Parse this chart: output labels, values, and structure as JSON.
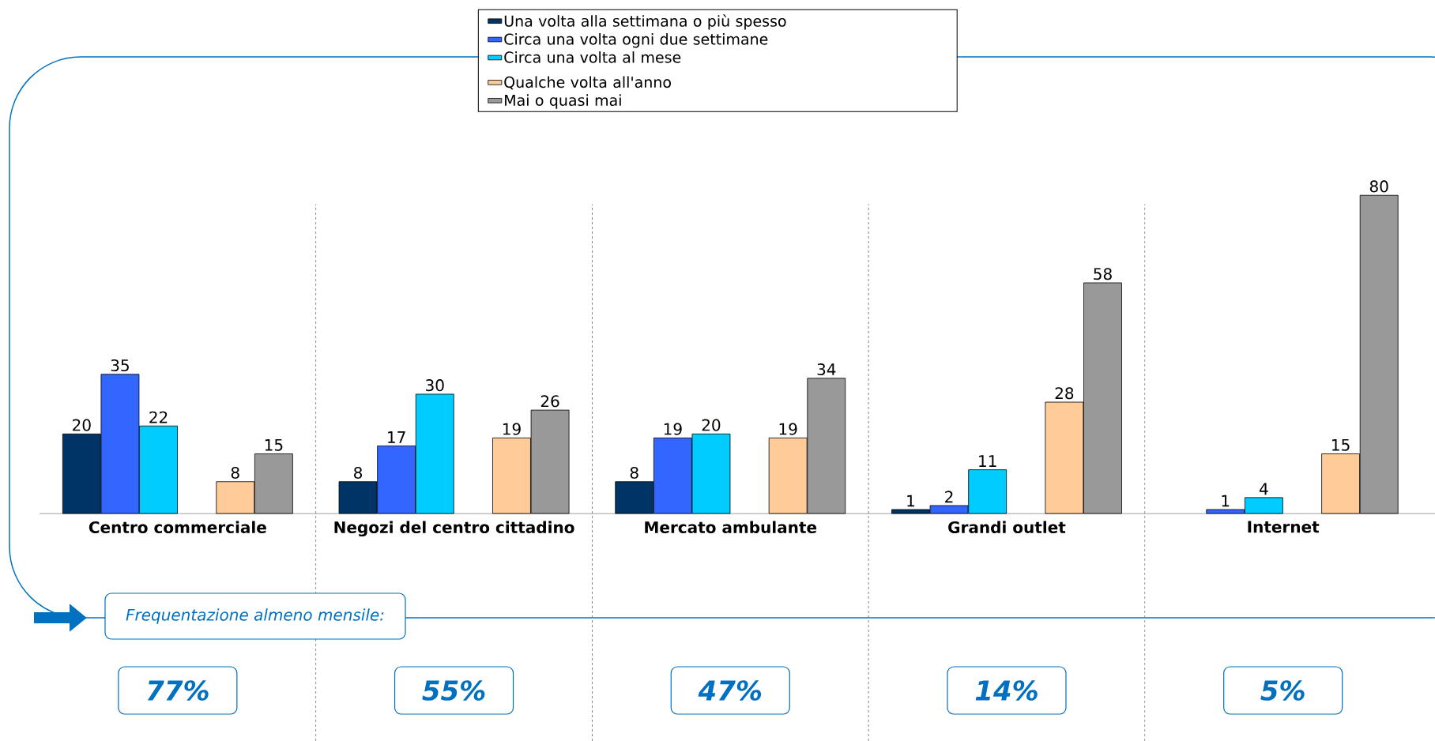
{
  "chart_data": {
    "type": "bar",
    "categories": [
      "Centro commerciale",
      "Negozi del centro cittadino",
      "Mercato ambulante",
      "Grandi outlet",
      "Internet"
    ],
    "series": [
      {
        "name": "Una volta alla settimana o più spesso",
        "color": "#003366",
        "values": [
          20,
          8,
          8,
          1,
          null
        ]
      },
      {
        "name": "Circa una volta ogni due settimane",
        "color": "#3366ff",
        "values": [
          35,
          17,
          19,
          2,
          1
        ]
      },
      {
        "name": "Circa una volta al mese",
        "color": "#00ccff",
        "values": [
          22,
          30,
          20,
          11,
          4
        ]
      },
      {
        "name": "Qualche volta all'anno",
        "color": "#ffcc99",
        "values": [
          8,
          19,
          19,
          28,
          15
        ]
      },
      {
        "name": "Mai o quasi mai",
        "color": "#999999",
        "values": [
          15,
          26,
          34,
          58,
          80
        ]
      }
    ],
    "data_labels": true,
    "legend": "top",
    "grid": "x",
    "annotations": [
      "Frequentazione almeno mensile:",
      "77%",
      "55%",
      "47%",
      "14%",
      "5%"
    ]
  }
}
